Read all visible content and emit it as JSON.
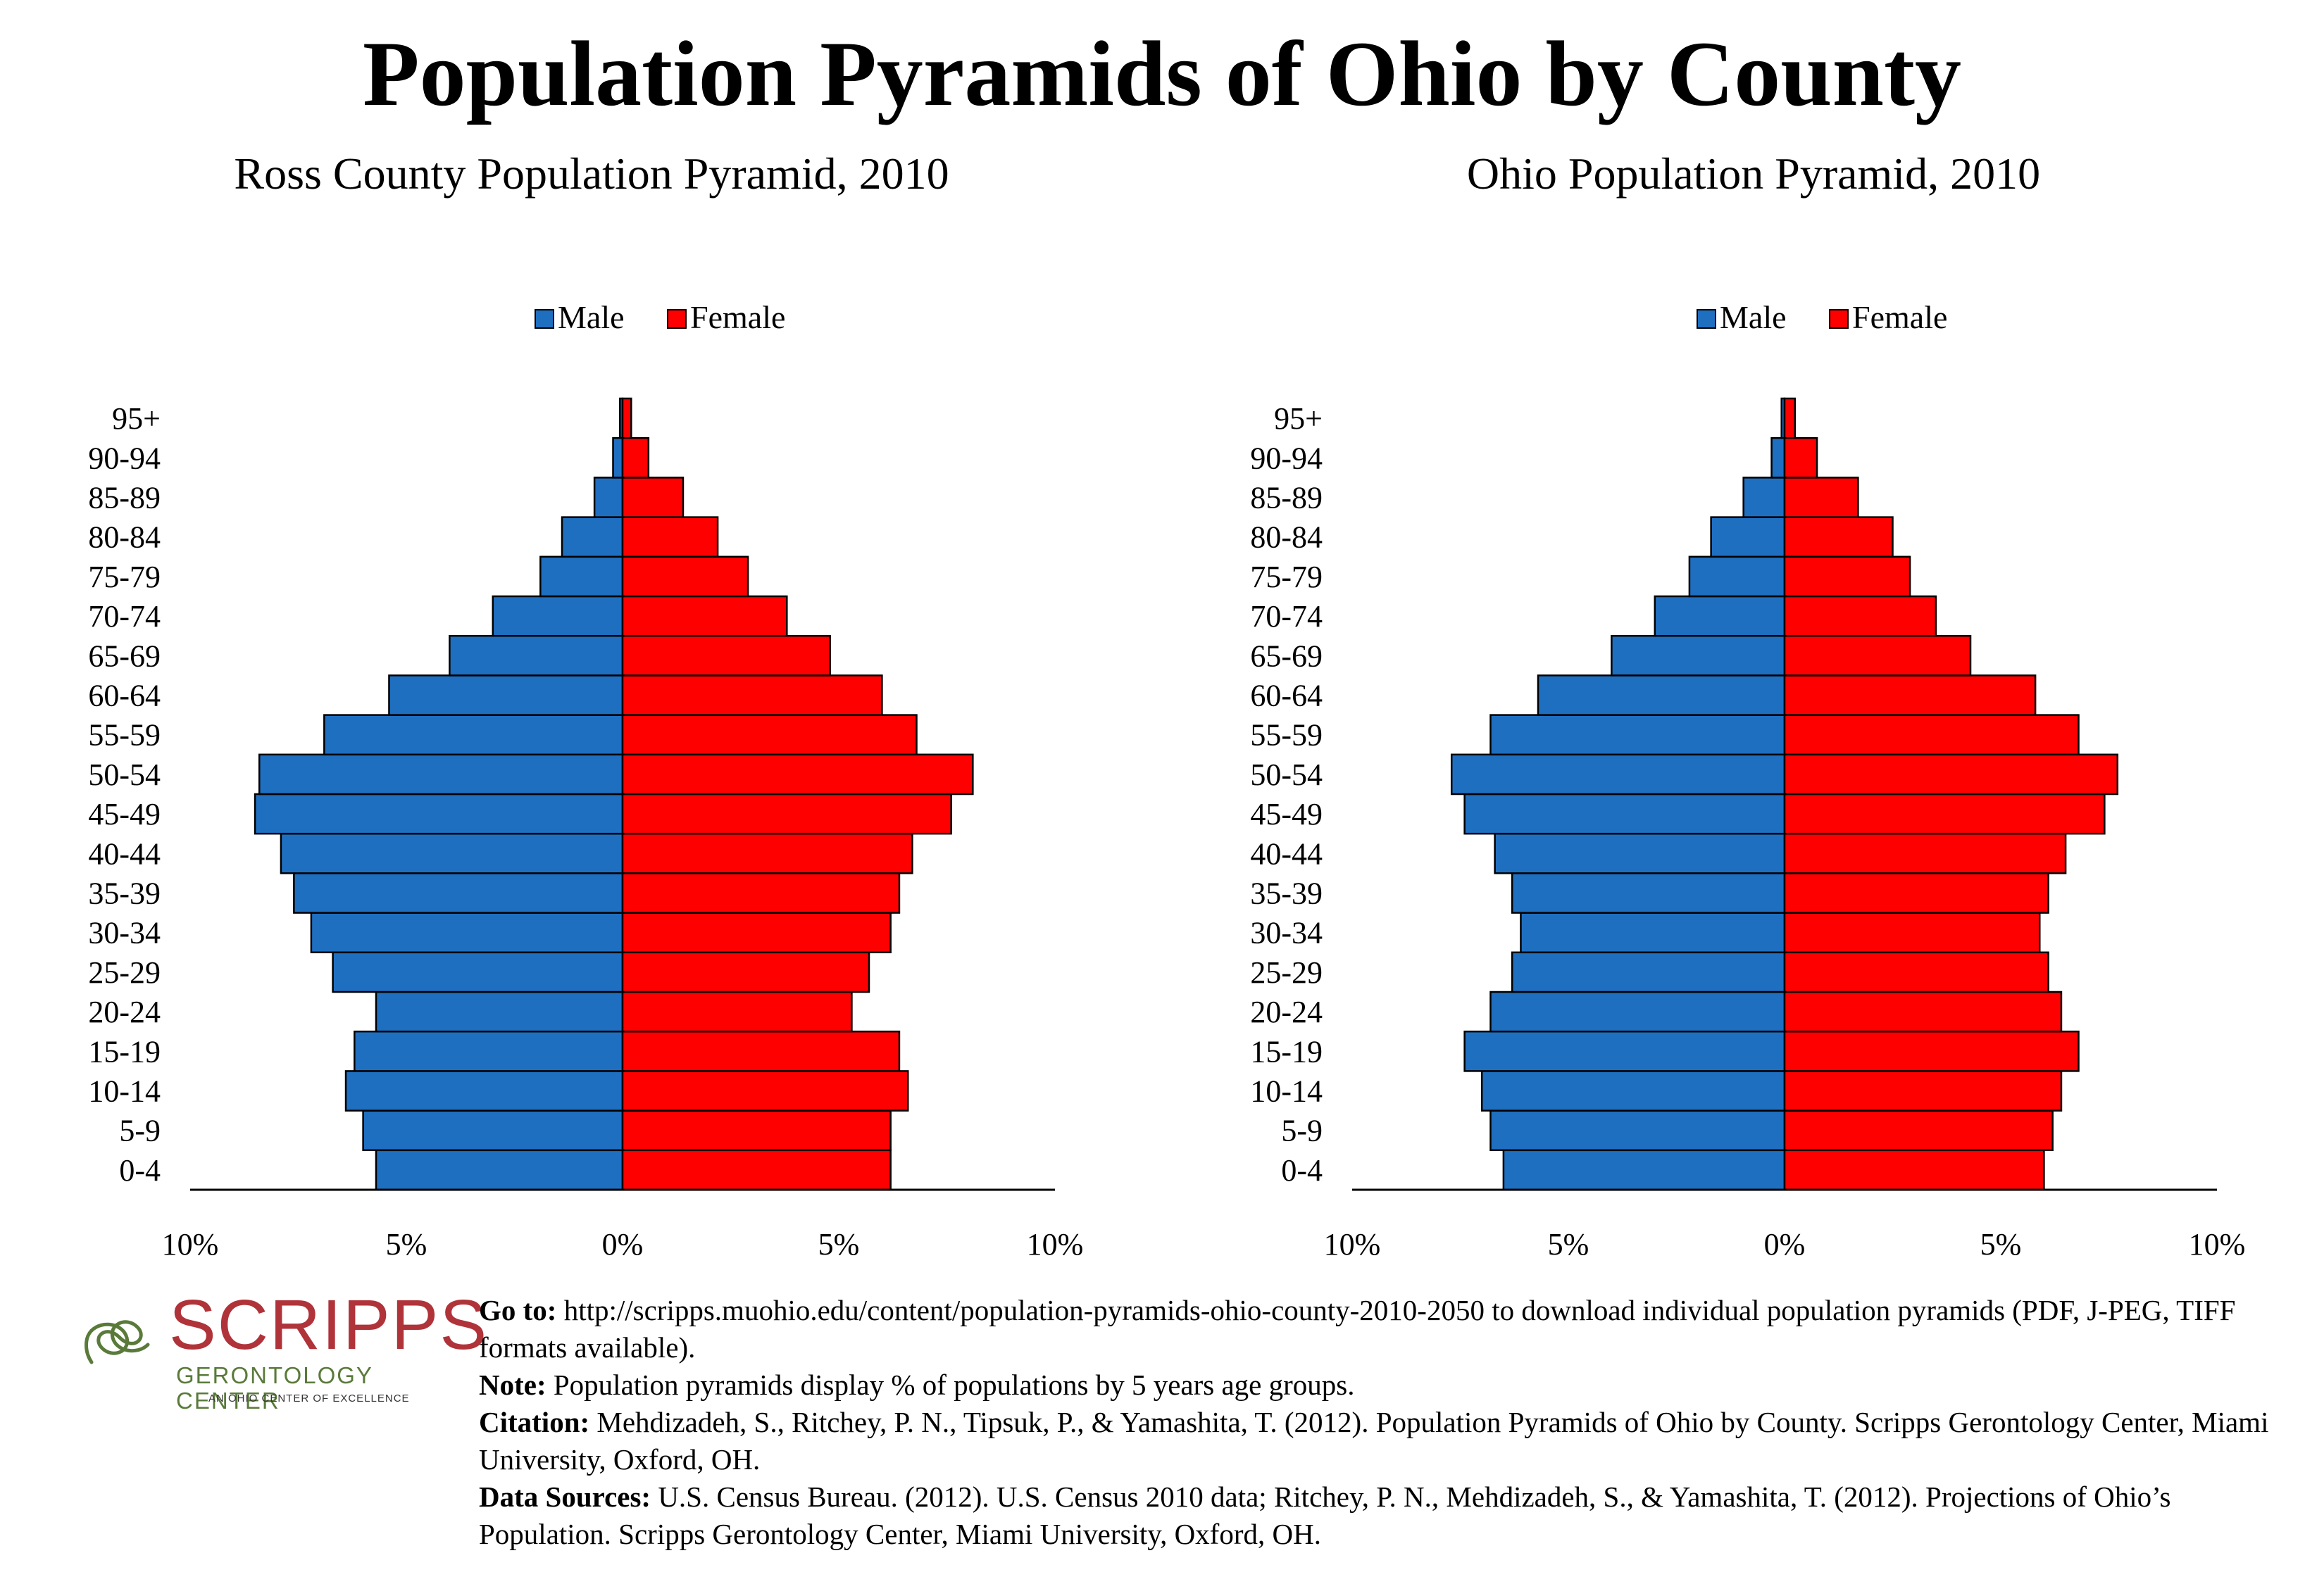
{
  "main_title": "Population Pyramids of Ohio by County",
  "colors": {
    "male": "#1f6fc1",
    "female": "#ff0000",
    "outline": "#000000"
  },
  "chart_data": [
    {
      "type": "bar",
      "orientation": "horizontal-pyramid",
      "title": "Ross County Population Pyramid, 2010",
      "legend": [
        "Male",
        "Female"
      ],
      "legend_position": "top",
      "categories": [
        "0-4",
        "5-9",
        "10-14",
        "15-19",
        "20-24",
        "25-29",
        "30-34",
        "35-39",
        "40-44",
        "45-49",
        "50-54",
        "55-59",
        "60-64",
        "65-69",
        "70-74",
        "75-79",
        "80-84",
        "85-89",
        "90-94",
        "95+"
      ],
      "series": [
        {
          "name": "Male",
          "values": [
            5.7,
            6.0,
            6.4,
            6.2,
            5.7,
            6.7,
            7.2,
            7.6,
            7.9,
            8.5,
            8.4,
            6.9,
            5.4,
            4.0,
            3.0,
            1.9,
            1.4,
            0.65,
            0.22,
            0.06
          ]
        },
        {
          "name": "Female",
          "values": [
            6.2,
            6.2,
            6.6,
            6.4,
            5.3,
            5.7,
            6.2,
            6.4,
            6.7,
            7.6,
            8.1,
            6.8,
            6.0,
            4.8,
            3.8,
            2.9,
            2.2,
            1.4,
            0.6,
            0.2
          ]
        }
      ],
      "xlim": [
        -10,
        10
      ],
      "x_ticks": [
        "10%",
        "5%",
        "0%",
        "5%",
        "10%"
      ]
    },
    {
      "type": "bar",
      "orientation": "horizontal-pyramid",
      "title": "Ohio Population Pyramid, 2010",
      "legend": [
        "Male",
        "Female"
      ],
      "legend_position": "top",
      "categories": [
        "0-4",
        "5-9",
        "10-14",
        "15-19",
        "20-24",
        "25-29",
        "30-34",
        "35-39",
        "40-44",
        "45-49",
        "50-54",
        "55-59",
        "60-64",
        "65-69",
        "70-74",
        "75-79",
        "80-84",
        "85-89",
        "90-94",
        "95+"
      ],
      "series": [
        {
          "name": "Male",
          "values": [
            6.5,
            6.8,
            7.0,
            7.4,
            6.8,
            6.3,
            6.1,
            6.3,
            6.7,
            7.4,
            7.7,
            6.8,
            5.7,
            4.0,
            3.0,
            2.2,
            1.7,
            0.95,
            0.3,
            0.07
          ]
        },
        {
          "name": "Female",
          "values": [
            6.0,
            6.2,
            6.4,
            6.8,
            6.4,
            6.1,
            5.9,
            6.1,
            6.5,
            7.4,
            7.7,
            6.8,
            5.8,
            4.3,
            3.5,
            2.9,
            2.5,
            1.7,
            0.75,
            0.24
          ]
        }
      ],
      "xlim": [
        -10,
        10
      ],
      "x_ticks": [
        "10%",
        "5%",
        "0%",
        "5%",
        "10%"
      ]
    }
  ],
  "logo": {
    "name": "SCRIPPS",
    "subtitle": "GERONTOLOGY CENTER",
    "tagline": "AN OHIO CENTER OF EXCELLENCE"
  },
  "notes": {
    "goto_label": "Go to:",
    "goto_text": " http://scripps.muohio.edu/content/population-pyramids-ohio-county-2010-2050 to download individual population pyramids (PDF, J-PEG, TIFF formats available).",
    "note_label": "Note:",
    "note_text": " Population pyramids display % of populations by 5 years age groups.",
    "citation_label": "Citation:",
    "citation_text": " Mehdizadeh, S., Ritchey, P. N., Tipsuk, P., & Yamashita, T. (2012). Population Pyramids of Ohio by County. Scripps Gerontology Center, Miami University, Oxford, OH.",
    "sources_label": "Data Sources:",
    "sources_text": " U.S. Census Bureau. (2012). U.S. Census 2010 data; Ritchey, P. N., Mehdizadeh, S., & Yamashita, T. (2012). Projections of Ohio’s Population. Scripps Gerontology Center, Miami University, Oxford, OH."
  }
}
